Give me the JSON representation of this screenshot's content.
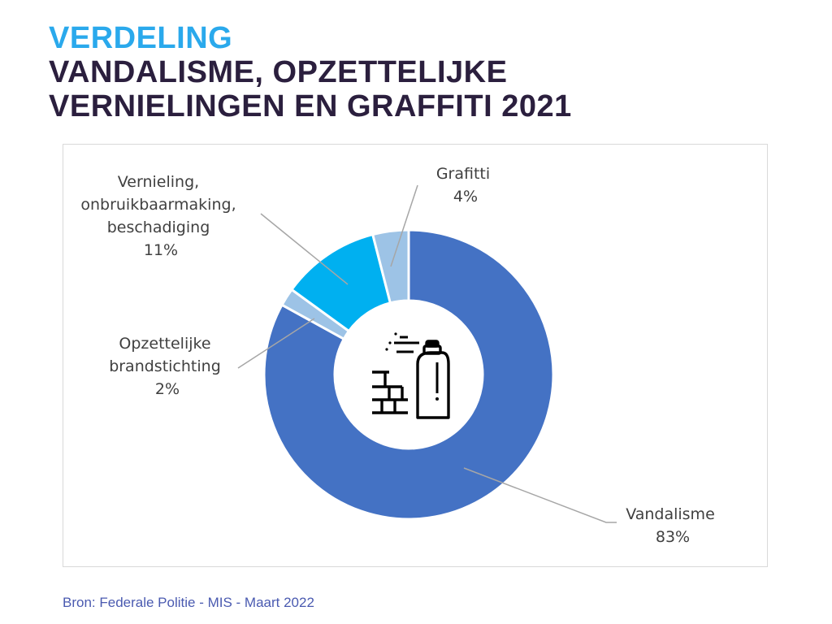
{
  "header": {
    "line1": "VERDELING",
    "line2": "VANDALISME, OPZETTELIJKE",
    "line3": "VERNIELINGEN EN GRAFFITI 2021"
  },
  "colors": {
    "title_accent": "#2aa9ec",
    "title_main": "#2b1f3e",
    "slice_vandalisme": "#4472c4",
    "slice_light": "#9dc3e6",
    "slice_vernieling": "#00b0f0"
  },
  "chart_data": {
    "type": "pie",
    "style": "donut",
    "title": "",
    "center_icon": "spray-paint-icon",
    "slices": [
      {
        "label": "Vandalisme",
        "value": 83,
        "display": "83%",
        "color": "#4472c4"
      },
      {
        "label": "Opzettelijke brandstichting",
        "value": 2,
        "display": "2%",
        "color": "#9dc3e6"
      },
      {
        "label": "Vernieling, onbruikbaarmaking, beschadiging",
        "value": 11,
        "display": "11%",
        "color": "#00b0f0"
      },
      {
        "label": "Grafitti",
        "value": 4,
        "display": "4%",
        "color": "#9dc3e6"
      }
    ],
    "labels": {
      "vandalisme": {
        "line1": "Vandalisme",
        "line2": "83%"
      },
      "brand": {
        "line1": "Opzettelijke",
        "line2": "brandstichting",
        "line3": "2%"
      },
      "vernieling": {
        "line1": "Vernieling,",
        "line2": "onbruikbaarmaking,",
        "line3": "beschadiging",
        "line4": "11%"
      },
      "grafitti": {
        "line1": "Grafitti",
        "line2": "4%"
      }
    }
  },
  "source": "Bron: Federale Politie - MIS - Maart 2022"
}
